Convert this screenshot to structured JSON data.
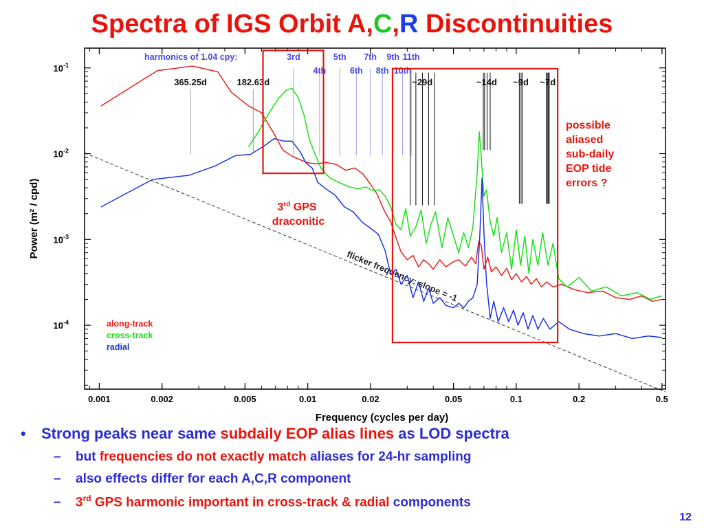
{
  "title": {
    "part1": "Spectra of IGS Orbit A,",
    "c": "C",
    "sep": ",",
    "r": "R",
    "part2": " Discontinuities"
  },
  "colors": {
    "along": "#e8201c",
    "cross": "#18e018",
    "radial": "#1c34e0",
    "harmonic": "#4545e0",
    "black_lines": "#222222",
    "box": "#e8140c",
    "flicker": "#555555"
  },
  "chart_data": {
    "type": "line",
    "xlabel": "Frequency (cycles per day)",
    "ylabel": "Power (m² / cpd)",
    "xscale": "log",
    "yscale": "log",
    "xlim": [
      0.00085,
      0.52
    ],
    "ylim": [
      1.8e-05,
      0.17
    ],
    "xticks": [
      {
        "v": 0.001,
        "label": "0.001"
      },
      {
        "v": 0.002,
        "label": "0.002"
      },
      {
        "v": 0.005,
        "label": "0.005"
      },
      {
        "v": 0.01,
        "label": "0.01"
      },
      {
        "v": 0.02,
        "label": "0.02"
      },
      {
        "v": 0.05,
        "label": "0.05"
      },
      {
        "v": 0.1,
        "label": "0.1"
      },
      {
        "v": 0.2,
        "label": "0.2"
      },
      {
        "v": 0.5,
        "label": "0.5"
      }
    ],
    "yticks": [
      {
        "v": 0.1,
        "mant": "10",
        "exp": "-1"
      },
      {
        "v": 0.01,
        "mant": "10",
        "exp": "-2"
      },
      {
        "v": 0.001,
        "mant": "10",
        "exp": "-3"
      },
      {
        "v": 0.0001,
        "mant": "10",
        "exp": "-4"
      }
    ],
    "legend": {
      "position": "bottom-left",
      "entries": [
        "along-track",
        "cross-track",
        "radial"
      ]
    },
    "series": [
      {
        "name": "along-track",
        "colorKey": "along",
        "x": [
          0.00102,
          0.0019,
          0.0028,
          0.0037,
          0.0043,
          0.0052,
          0.006,
          0.0069,
          0.0076,
          0.0085,
          0.0094,
          0.0101,
          0.011,
          0.0122,
          0.0137,
          0.0152,
          0.0168,
          0.0184,
          0.02,
          0.0215,
          0.0232,
          0.025,
          0.0265,
          0.028,
          0.03,
          0.032,
          0.034,
          0.036,
          0.038,
          0.04,
          0.043,
          0.046,
          0.05,
          0.053,
          0.057,
          0.061,
          0.064,
          0.066,
          0.068,
          0.07,
          0.073,
          0.076,
          0.08,
          0.085,
          0.09,
          0.095,
          0.1,
          0.106,
          0.112,
          0.118,
          0.125,
          0.132,
          0.14,
          0.15,
          0.165,
          0.19,
          0.22,
          0.26,
          0.3,
          0.35,
          0.4,
          0.45,
          0.5
        ],
        "y": [
          0.036,
          0.093,
          0.105,
          0.09,
          0.052,
          0.036,
          0.03,
          0.017,
          0.011,
          0.0092,
          0.0083,
          0.0078,
          0.0076,
          0.0079,
          0.0075,
          0.0064,
          0.0068,
          0.0058,
          0.0044,
          0.0034,
          0.0022,
          0.0016,
          0.00105,
          0.00072,
          0.00058,
          0.00065,
          0.00048,
          0.00058,
          0.00052,
          0.00045,
          0.00058,
          0.00048,
          0.00055,
          0.00058,
          0.00049,
          0.00062,
          0.00052,
          0.00095,
          0.00085,
          0.00045,
          0.00062,
          0.00042,
          0.00048,
          0.00038,
          0.00046,
          0.00034,
          0.0004,
          0.00032,
          0.00037,
          0.0003,
          0.00035,
          0.00028,
          0.00032,
          0.00028,
          0.0003,
          0.00026,
          0.00024,
          0.00025,
          0.00021,
          0.0002,
          0.00022,
          0.00019,
          0.0002
        ]
      },
      {
        "name": "cross-track",
        "colorKey": "cross",
        "x": [
          0.0052,
          0.0058,
          0.0063,
          0.0068,
          0.0073,
          0.0079,
          0.0084,
          0.009,
          0.0096,
          0.0102,
          0.0108,
          0.0116,
          0.0128,
          0.0142,
          0.0158,
          0.0175,
          0.019,
          0.0205,
          0.022,
          0.0235,
          0.025,
          0.0265,
          0.028,
          0.0295,
          0.031,
          0.033,
          0.035,
          0.037,
          0.039,
          0.041,
          0.044,
          0.047,
          0.05,
          0.053,
          0.056,
          0.059,
          0.062,
          0.065,
          0.0665,
          0.068,
          0.07,
          0.072,
          0.075,
          0.078,
          0.081,
          0.085,
          0.09,
          0.095,
          0.1,
          0.105,
          0.11,
          0.115,
          0.12,
          0.127,
          0.134,
          0.142,
          0.15,
          0.16,
          0.175,
          0.2,
          0.23,
          0.27,
          0.32,
          0.38,
          0.44,
          0.5
        ],
        "y": [
          0.012,
          0.018,
          0.026,
          0.035,
          0.045,
          0.055,
          0.058,
          0.045,
          0.028,
          0.0145,
          0.01,
          0.0067,
          0.0052,
          0.0046,
          0.0041,
          0.0039,
          0.0041,
          0.0037,
          0.0038,
          0.0032,
          0.0024,
          0.0015,
          0.0013,
          0.0023,
          0.0011,
          0.0014,
          0.0022,
          0.0009,
          0.0015,
          0.0021,
          0.0008,
          0.0018,
          0.0011,
          0.0007,
          0.0012,
          0.0008,
          0.0014,
          0.006,
          0.018,
          0.009,
          0.0032,
          0.0038,
          0.0016,
          0.0011,
          0.0018,
          0.0007,
          0.0012,
          0.00045,
          0.0013,
          0.0005,
          0.0011,
          0.0004,
          0.001,
          0.0005,
          0.0012,
          0.0005,
          0.0009,
          0.00035,
          0.00028,
          0.00036,
          0.00025,
          0.00028,
          0.00022,
          0.00024,
          0.0002,
          0.00022
        ]
      },
      {
        "name": "radial",
        "colorKey": "radial",
        "x": [
          0.00102,
          0.0018,
          0.0027,
          0.0036,
          0.0045,
          0.0053,
          0.0061,
          0.0069,
          0.0077,
          0.0084,
          0.0092,
          0.0098,
          0.0105,
          0.0112,
          0.0122,
          0.0135,
          0.015,
          0.0165,
          0.0182,
          0.02,
          0.0218,
          0.0235,
          0.025,
          0.0265,
          0.028,
          0.03,
          0.032,
          0.034,
          0.036,
          0.038,
          0.04,
          0.043,
          0.046,
          0.05,
          0.053,
          0.056,
          0.059,
          0.062,
          0.065,
          0.067,
          0.0685,
          0.07,
          0.072,
          0.075,
          0.078,
          0.082,
          0.087,
          0.092,
          0.097,
          0.102,
          0.108,
          0.114,
          0.12,
          0.127,
          0.135,
          0.145,
          0.16,
          0.18,
          0.21,
          0.25,
          0.3,
          0.36,
          0.43,
          0.5
        ],
        "y": [
          0.0024,
          0.005,
          0.0056,
          0.0072,
          0.0095,
          0.0098,
          0.012,
          0.015,
          0.014,
          0.014,
          0.0105,
          0.0078,
          0.0068,
          0.0046,
          0.0039,
          0.0033,
          0.0024,
          0.0021,
          0.0016,
          0.00135,
          0.00115,
          0.00074,
          0.00039,
          0.00045,
          0.0003,
          0.00038,
          0.00021,
          0.00032,
          0.00019,
          0.00027,
          0.00018,
          0.00021,
          0.00017,
          0.00016,
          0.00018,
          0.00016,
          0.00019,
          0.00021,
          0.0003,
          0.0012,
          0.0052,
          0.0012,
          0.00032,
          0.00012,
          0.00019,
          0.00011,
          0.00016,
          0.00011,
          0.00015,
          0.0001,
          0.00014,
          9e-05,
          0.00013,
          9e-05,
          0.00012,
          9e-05,
          0.00011,
          9e-05,
          8e-05,
          7.5e-05,
          8e-05,
          7e-05,
          7.5e-05,
          7.2e-05
        ]
      }
    ],
    "flicker_line": {
      "x": [
        0.00085,
        0.52
      ],
      "y": [
        0.0102,
        1.67e-05
      ]
    },
    "flicker_label": "flicker frequency: slope = -1",
    "period_lines": [
      {
        "x": 0.002738,
        "label": "365.25d",
        "y1": 0.01,
        "y2": 0.057
      },
      {
        "x": 0.005476,
        "label": "182.63d",
        "y1": 0.01,
        "y2": 0.057
      }
    ],
    "harmonics": {
      "header": "harmonics of 1.04 cpy:",
      "lines": [
        {
          "x": 0.00855,
          "label": "3rd",
          "row": 1
        },
        {
          "x": 0.0114,
          "label": "4th",
          "row": 2
        },
        {
          "x": 0.01425,
          "label": "5th",
          "row": 1
        },
        {
          "x": 0.0171,
          "label": "6th",
          "row": 2
        },
        {
          "x": 0.01995,
          "label": "7th",
          "row": 1
        },
        {
          "x": 0.0228,
          "label": "8th",
          "row": 2
        },
        {
          "x": 0.02565,
          "label": "9th",
          "row": 1
        },
        {
          "x": 0.0285,
          "label": "10th",
          "row": 2
        },
        {
          "x": 0.03135,
          "label": "11th",
          "row": 1
        }
      ]
    },
    "alias_groups": [
      {
        "label": "~29d",
        "lines": [
          0.031,
          0.033,
          0.0355,
          0.038,
          0.0405
        ]
      },
      {
        "label": "~14d",
        "lines": [
          0.0695,
          0.0705,
          0.0725,
          0.075
        ]
      },
      {
        "label": "~9d",
        "lines": [
          0.1035,
          0.1055,
          0.107
        ]
      },
      {
        "label": "~7d",
        "lines": [
          0.1395,
          0.141,
          0.1425,
          0.144
        ]
      }
    ],
    "boxes": [
      {
        "x1": 0.0061,
        "x2": 0.0119,
        "y1": 0.0059,
        "y2": 0.16
      },
      {
        "x1": 0.0255,
        "x2": 0.158,
        "y1": 6.3e-05,
        "y2": 0.098
      }
    ],
    "annotations": {
      "gps_line1": "3",
      "gps_sup": "rd",
      "gps_line1b": " GPS",
      "gps_line2": "draconitic",
      "eop": [
        "possible",
        "aliased",
        "sub-daily",
        "EOP tide",
        "errors ?"
      ]
    }
  },
  "bullets": {
    "main": {
      "part1": "Strong peaks near same ",
      "part2": "subdaily EOP alias lines",
      "part3": " as LOD spectra"
    },
    "sub1": {
      "part1": "but ",
      "part2": "frequencies do not exactly match",
      "part3": " aliases for 24-hr sampling"
    },
    "sub2": {
      "text": "also effects differ for each A,C,R component"
    },
    "sub3": {
      "num": "3",
      "sup": "rd",
      "part2": " GPS harmonic important in cross-track & radial",
      "part3": " components"
    }
  },
  "page_number": "12"
}
